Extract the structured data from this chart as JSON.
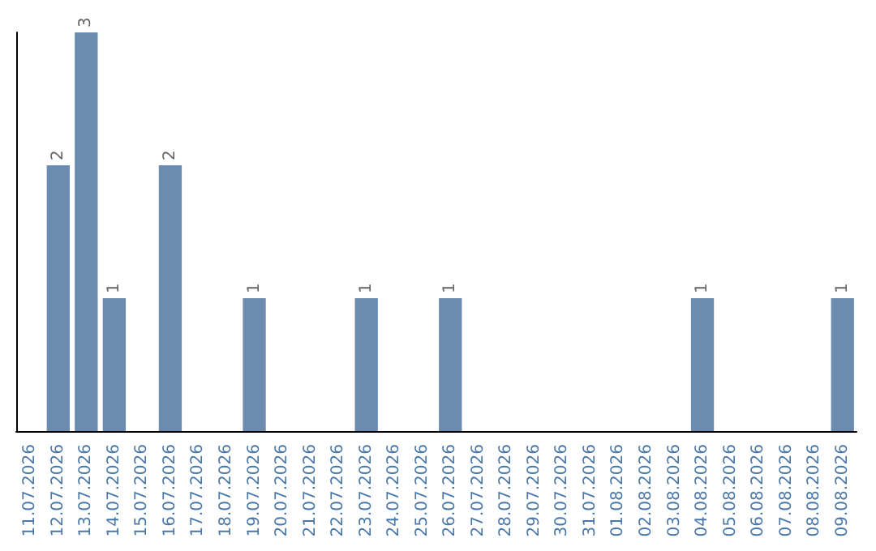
{
  "chart_data": {
    "type": "bar",
    "categories": [
      "11.07.2026",
      "12.07.2026",
      "13.07.2026",
      "14.07.2026",
      "15.07.2026",
      "16.07.2026",
      "17.07.2026",
      "18.07.2026",
      "19.07.2026",
      "20.07.2026",
      "21.07.2026",
      "22.07.2026",
      "23.07.2026",
      "24.07.2026",
      "25.07.2026",
      "26.07.2026",
      "27.07.2026",
      "28.07.2026",
      "29.07.2026",
      "30.07.2026",
      "31.07.2026",
      "01.08.2026",
      "02.08.2026",
      "03.08.2026",
      "04.08.2026",
      "05.08.2026",
      "06.08.2026",
      "07.08.2026",
      "08.08.2026",
      "09.08.2026"
    ],
    "values": [
      0,
      2,
      3,
      1,
      0,
      2,
      0,
      0,
      1,
      0,
      0,
      0,
      1,
      0,
      0,
      1,
      0,
      0,
      0,
      0,
      0,
      0,
      0,
      0,
      1,
      0,
      0,
      0,
      0,
      1
    ],
    "value_labels": [
      null,
      "2",
      "3",
      "1",
      null,
      "2",
      null,
      null,
      "1",
      null,
      null,
      null,
      "1",
      null,
      null,
      "1",
      null,
      null,
      null,
      null,
      null,
      null,
      null,
      null,
      "1",
      null,
      null,
      null,
      null,
      "1"
    ],
    "color": "#6b8cae"
  }
}
